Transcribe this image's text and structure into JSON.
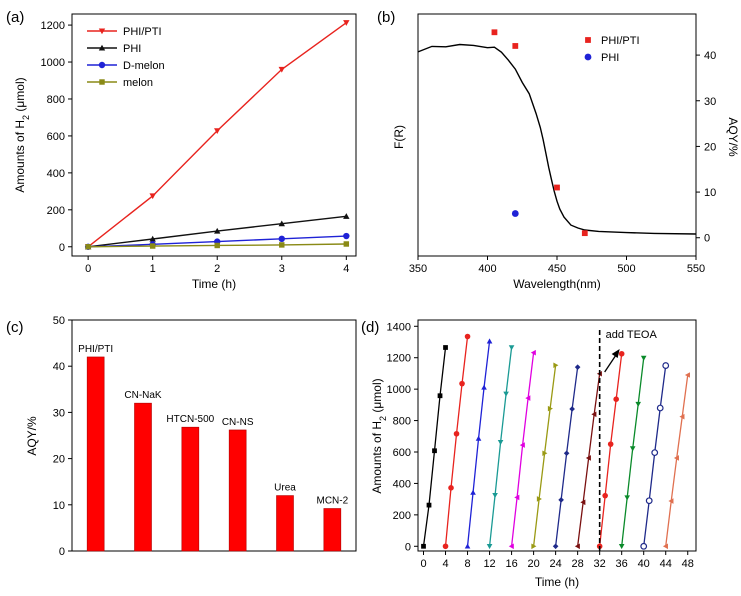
{
  "colors": {
    "phipti": "#e8231e",
    "phi": "#111111",
    "dmelon": "#1f22d6",
    "melon": "#8a8a16",
    "bar": "#ff0000",
    "curve": "#000000",
    "arrow": "#000000",
    "cycles": [
      "#000000",
      "#e8231e",
      "#1f22d6",
      "#1a9a94",
      "#e000e0",
      "#9a9a14",
      "#1f2a8a",
      "#7a1010",
      "#e8231e",
      "#0a8a2a",
      "#1f2a8a",
      "#e07050"
    ]
  },
  "chart_data": [
    {
      "panel": "(a)",
      "type": "line",
      "xlabel": "Time (h)",
      "ylabel_main": "Amounts of H",
      "ylabel_sub": "2",
      "ylabel_unit": " (μmol)",
      "xlim": [
        -0.25,
        4.15
      ],
      "ylim": [
        -50,
        1260
      ],
      "xticks": [
        0,
        1,
        2,
        3,
        4
      ],
      "yticks": [
        0,
        200,
        400,
        600,
        800,
        1000,
        1200
      ],
      "x": [
        0,
        1,
        2,
        3,
        4
      ],
      "series": [
        {
          "name": "PHI/PTI",
          "color_key": "phipti",
          "marker": "tri-down",
          "values": [
            0,
            275,
            628,
            960,
            1213
          ]
        },
        {
          "name": "PHI",
          "color_key": "phi",
          "marker": "tri-up",
          "values": [
            0,
            42,
            85,
            125,
            165
          ]
        },
        {
          "name": "D-melon",
          "color_key": "dmelon",
          "marker": "circle",
          "values": [
            0,
            13,
            28,
            43,
            58
          ]
        },
        {
          "name": "melon",
          "color_key": "melon",
          "marker": "square",
          "values": [
            0,
            4,
            7,
            10,
            15
          ]
        }
      ],
      "legend_position": "top-left"
    },
    {
      "panel": "(b)",
      "type": "line",
      "xlabel": "Wavelength(nm)",
      "ylabel_left": "F(R)",
      "ylabel_right": "AQY/%",
      "xlim": [
        350,
        550
      ],
      "ylim_right": [
        -4,
        49
      ],
      "xticks": [
        350,
        400,
        450,
        500,
        550
      ],
      "yticks_right": [
        0,
        10,
        20,
        30,
        40
      ],
      "absorption_curve": {
        "wavelength": [
          350,
          360,
          370,
          380,
          390,
          400,
          405,
          410,
          415,
          420,
          425,
          430,
          435,
          438,
          440,
          442,
          444,
          446,
          448,
          450,
          452,
          455,
          460,
          465,
          470,
          480,
          500,
          520,
          550
        ],
        "f_r": [
          0.93,
          0.955,
          0.96,
          0.965,
          0.962,
          0.955,
          0.95,
          0.93,
          0.89,
          0.84,
          0.78,
          0.72,
          0.62,
          0.55,
          0.49,
          0.42,
          0.35,
          0.29,
          0.23,
          0.18,
          0.14,
          0.1,
          0.06,
          0.045,
          0.035,
          0.028,
          0.022,
          0.018,
          0.015
        ]
      },
      "series": [
        {
          "name": "PHI/PTI",
          "color_key": "phipti",
          "marker": "square",
          "x": [
            405,
            420,
            450,
            470
          ],
          "values": [
            45,
            42,
            11,
            1
          ]
        },
        {
          "name": "PHI",
          "color_key": "dmelon",
          "marker": "circle",
          "x": [
            420
          ],
          "values": [
            5.3
          ]
        }
      ],
      "legend_position": "top-right"
    },
    {
      "panel": "(c)",
      "type": "bar",
      "ylabel": "AQY/%",
      "ylim": [
        0,
        50
      ],
      "yticks": [
        0,
        10,
        20,
        30,
        40,
        50
      ],
      "categories": [
        "PHI/PTI",
        "CN-NaK",
        "HTCN-500",
        "CN-NS",
        "Urea",
        "MCN-2"
      ],
      "values": [
        42,
        32,
        26.8,
        26.2,
        12,
        9.2
      ]
    },
    {
      "panel": "(d)",
      "type": "line",
      "xlabel": "Time (h)",
      "ylabel_main": "Amounts of H",
      "ylabel_sub": "2",
      "ylabel_unit": " (μmol)",
      "xlim": [
        -1,
        49.5
      ],
      "ylim": [
        -30,
        1440
      ],
      "xticks": [
        0,
        4,
        8,
        12,
        16,
        20,
        24,
        28,
        32,
        36,
        40,
        44,
        48
      ],
      "yticks": [
        0,
        200,
        400,
        600,
        800,
        1000,
        1200,
        1400
      ],
      "annotation": "add TEOA",
      "annotation_x": 32,
      "cycles": [
        {
          "cycle": 1,
          "marker": "square",
          "x": [
            0,
            1,
            2,
            3,
            4
          ],
          "values": [
            0,
            262,
            608,
            958,
            1265
          ]
        },
        {
          "cycle": 2,
          "marker": "circle",
          "x": [
            4,
            5,
            6,
            7,
            8
          ],
          "values": [
            0,
            372,
            716,
            1035,
            1335
          ]
        },
        {
          "cycle": 3,
          "marker": "tri-up",
          "x": [
            8,
            9,
            10,
            11,
            12
          ],
          "values": [
            0,
            342,
            686,
            1011,
            1305
          ]
        },
        {
          "cycle": 4,
          "marker": "tri-down",
          "x": [
            12,
            13,
            14,
            15,
            16
          ],
          "values": [
            0,
            325,
            662,
            970,
            1265
          ]
        },
        {
          "cycle": 5,
          "marker": "tri-left",
          "x": [
            16,
            17,
            18,
            19,
            20
          ],
          "values": [
            0,
            311,
            644,
            943,
            1232
          ]
        },
        {
          "cycle": 6,
          "marker": "tri-right",
          "x": [
            20,
            21,
            22,
            23,
            24
          ],
          "values": [
            0,
            301,
            592,
            876,
            1152
          ]
        },
        {
          "cycle": 7,
          "marker": "diamond",
          "x": [
            24,
            25,
            26,
            27,
            28
          ],
          "values": [
            0,
            295,
            592,
            874,
            1140
          ]
        },
        {
          "cycle": 8,
          "marker": "tri-left",
          "x": [
            28,
            29,
            30,
            31,
            32
          ],
          "values": [
            0,
            280,
            562,
            840,
            1098
          ]
        },
        {
          "cycle": 9,
          "marker": "circle",
          "x": [
            32,
            33,
            34,
            35,
            36
          ],
          "values": [
            0,
            322,
            650,
            936,
            1225
          ]
        },
        {
          "cycle": 10,
          "marker": "tri-down",
          "x": [
            36,
            37,
            38,
            39,
            40
          ],
          "values": [
            0,
            310,
            622,
            905,
            1198
          ]
        },
        {
          "cycle": 11,
          "marker": "circle-open",
          "x": [
            40,
            41,
            42,
            43,
            44
          ],
          "values": [
            0,
            290,
            596,
            880,
            1150
          ]
        },
        {
          "cycle": 12,
          "marker": "tri-left",
          "x": [
            44,
            45,
            46,
            47,
            48
          ],
          "values": [
            0,
            288,
            562,
            825,
            1090
          ]
        }
      ]
    }
  ]
}
